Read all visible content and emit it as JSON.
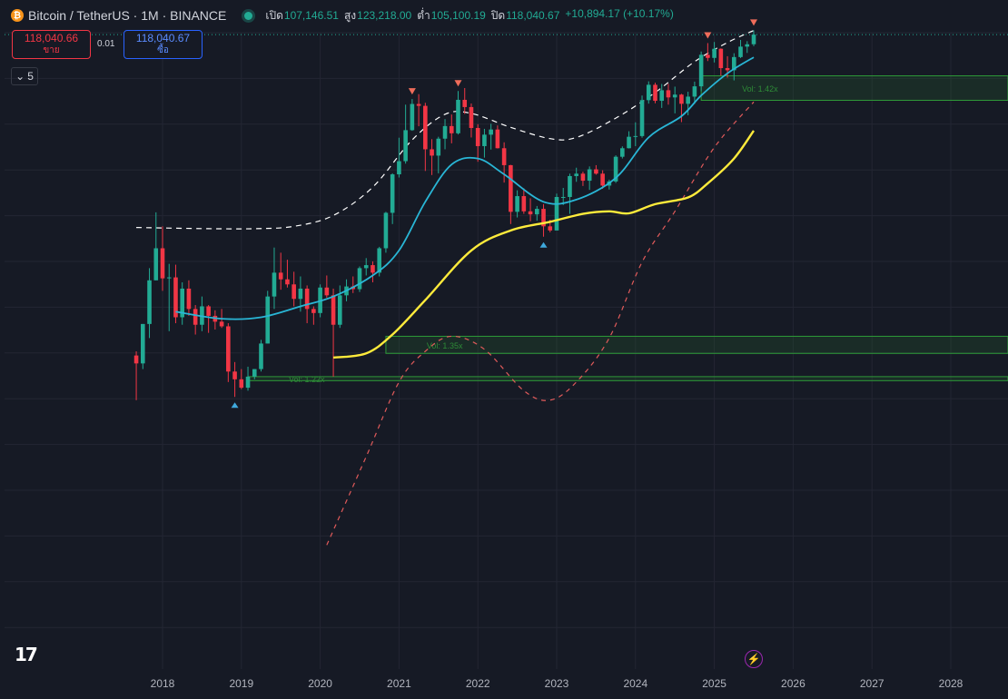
{
  "header": {
    "symbol": "Bitcoin / TetherUS · 1M · BINANCE",
    "coin_icon": "bitcoin-icon",
    "ohlc": {
      "open_label": "เปิด",
      "open": "107,146.51",
      "high_label": "สูง",
      "high": "123,218.00",
      "low_label": "ต่ำ",
      "low": "105,100.19",
      "close_label": "ปิด",
      "close": "118,040.67",
      "change": "+10,894.17 (+10.17%)"
    }
  },
  "trade": {
    "sell_price": "118,040.66",
    "sell_label": "ขาย",
    "spread": "0.01",
    "buy_price": "118,040.67",
    "buy_label": "ซื้อ"
  },
  "indicators_collapsed_count": "5",
  "colors": {
    "up": "#22ab94",
    "down": "#f23645",
    "ma_blue": "#29b6d6",
    "ma_yellow": "#ffeb3b",
    "zone": "#2e7d32",
    "bg": "#161a25",
    "grid": "#232633"
  },
  "chart_data": {
    "type": "candlestick",
    "x_axis": {
      "ticks": [
        "2018",
        "2019",
        "2020",
        "2021",
        "2022",
        "2023",
        "2024",
        "2025",
        "2026",
        "2027",
        "2028"
      ]
    },
    "y_axis": {
      "scale": "log",
      "visible_labels": false
    },
    "candles": [
      [
        "2017-09",
        4700,
        4900,
        3000,
        4340
      ],
      [
        "2017-10",
        4340,
        6450,
        4100,
        6450
      ],
      [
        "2017-11",
        6450,
        11300,
        5600,
        10000
      ],
      [
        "2017-12",
        10000,
        19800,
        10000,
        13800
      ],
      [
        "2018-01",
        13800,
        17200,
        9000,
        10200
      ],
      [
        "2018-02",
        10200,
        11800,
        6000,
        10300
      ],
      [
        "2018-03",
        10300,
        11700,
        6500,
        6900
      ],
      [
        "2018-04",
        6900,
        9800,
        6400,
        9200
      ],
      [
        "2018-05",
        9200,
        10000,
        7000,
        7500
      ],
      [
        "2018-06",
        7500,
        7800,
        5800,
        6400
      ],
      [
        "2018-07",
        6400,
        8500,
        6000,
        7700
      ],
      [
        "2018-08",
        7700,
        7800,
        5900,
        7000
      ],
      [
        "2018-09",
        7000,
        7400,
        6100,
        6600
      ],
      [
        "2018-10",
        6600,
        7500,
        6200,
        6300
      ],
      [
        "2018-11",
        6300,
        6500,
        3600,
        4000
      ],
      [
        "2018-12",
        4000,
        4400,
        3100,
        3700
      ],
      [
        "2019-01",
        3700,
        4100,
        3350,
        3400
      ],
      [
        "2019-02",
        3400,
        4200,
        3300,
        3800
      ],
      [
        "2019-03",
        3800,
        4100,
        3700,
        4100
      ],
      [
        "2019-04",
        4100,
        5500,
        4000,
        5300
      ],
      [
        "2019-05",
        5300,
        9000,
        5300,
        8500
      ],
      [
        "2019-06",
        8500,
        13900,
        7500,
        10800
      ],
      [
        "2019-07",
        10800,
        13200,
        9100,
        10100
      ],
      [
        "2019-08",
        10100,
        12300,
        9300,
        9600
      ],
      [
        "2019-09",
        9600,
        10900,
        7700,
        8300
      ],
      [
        "2019-10",
        8300,
        10400,
        7300,
        9200
      ],
      [
        "2019-11",
        9200,
        9500,
        6500,
        7500
      ],
      [
        "2019-12",
        7500,
        7700,
        6400,
        7200
      ],
      [
        "2020-01",
        7200,
        9600,
        6900,
        9300
      ],
      [
        "2020-02",
        9300,
        10500,
        8400,
        8600
      ],
      [
        "2020-03",
        8600,
        9200,
        3800,
        6400
      ],
      [
        "2020-04",
        6400,
        9500,
        6200,
        8600
      ],
      [
        "2020-05",
        8600,
        10100,
        8100,
        9400
      ],
      [
        "2020-06",
        9400,
        10400,
        8800,
        9150
      ],
      [
        "2020-07",
        9150,
        11500,
        8900,
        11300
      ],
      [
        "2020-08",
        11300,
        12500,
        10500,
        11650
      ],
      [
        "2020-09",
        11650,
        12100,
        9800,
        10800
      ],
      [
        "2020-10",
        10800,
        14000,
        10400,
        13800
      ],
      [
        "2020-11",
        13800,
        19900,
        13200,
        19700
      ],
      [
        "2020-12",
        19700,
        29300,
        17600,
        29000
      ],
      [
        "2021-01",
        29000,
        41900,
        28100,
        33100
      ],
      [
        "2021-02",
        33100,
        58400,
        32300,
        45200
      ],
      [
        "2021-03",
        45200,
        61800,
        44900,
        58800
      ],
      [
        "2021-04",
        58800,
        64900,
        47000,
        57700
      ],
      [
        "2021-05",
        57700,
        59500,
        30000,
        37300
      ],
      [
        "2021-06",
        37300,
        41300,
        28800,
        35000
      ],
      [
        "2021-07",
        35000,
        42300,
        29300,
        41500
      ],
      [
        "2021-08",
        41500,
        50500,
        37300,
        47100
      ],
      [
        "2021-09",
        47100,
        52900,
        39600,
        43800
      ],
      [
        "2021-10",
        43800,
        67000,
        43300,
        61300
      ],
      [
        "2021-11",
        61300,
        69000,
        53200,
        57000
      ],
      [
        "2021-12",
        57000,
        59100,
        42000,
        46200
      ],
      [
        "2022-01",
        46200,
        48000,
        32900,
        38500
      ],
      [
        "2022-02",
        38500,
        45800,
        34300,
        43200
      ],
      [
        "2022-03",
        43200,
        48200,
        37200,
        45500
      ],
      [
        "2022-04",
        45500,
        47400,
        37600,
        37700
      ],
      [
        "2022-05",
        37700,
        40000,
        26700,
        31800
      ],
      [
        "2022-06",
        31800,
        31900,
        17600,
        19900
      ],
      [
        "2022-07",
        19900,
        24700,
        18800,
        23300
      ],
      [
        "2022-08",
        23300,
        25200,
        19500,
        20000
      ],
      [
        "2022-09",
        20000,
        22800,
        18100,
        19400
      ],
      [
        "2022-10",
        19400,
        21100,
        18200,
        20500
      ],
      [
        "2022-11",
        20500,
        21500,
        15500,
        17200
      ],
      [
        "2022-12",
        17200,
        18400,
        16200,
        16500
      ],
      [
        "2023-01",
        16500,
        23900,
        16500,
        23100
      ],
      [
        "2023-02",
        23100,
        25300,
        21300,
        23100
      ],
      [
        "2023-03",
        23100,
        29200,
        19500,
        28500
      ],
      [
        "2023-04",
        28500,
        31000,
        26900,
        29200
      ],
      [
        "2023-05",
        29200,
        29800,
        25800,
        27200
      ],
      [
        "2023-06",
        27200,
        31400,
        24800,
        30500
      ],
      [
        "2023-07",
        30500,
        31800,
        28900,
        29200
      ],
      [
        "2023-08",
        29200,
        30200,
        25100,
        25900
      ],
      [
        "2023-09",
        25900,
        27500,
        24900,
        27000
      ],
      [
        "2023-10",
        27000,
        35100,
        26600,
        34600
      ],
      [
        "2023-11",
        34600,
        38400,
        34000,
        37700
      ],
      [
        "2023-12",
        37700,
        44700,
        37600,
        42300
      ],
      [
        "2024-01",
        42300,
        48900,
        38500,
        42600
      ],
      [
        "2024-02",
        42600,
        64000,
        41900,
        61100
      ],
      [
        "2024-03",
        61100,
        73800,
        59000,
        71300
      ],
      [
        "2024-04",
        71300,
        72800,
        59200,
        60700
      ],
      [
        "2024-05",
        60700,
        71900,
        56500,
        67500
      ],
      [
        "2024-06",
        67500,
        72000,
        58400,
        62800
      ],
      [
        "2024-07",
        62800,
        70000,
        53500,
        64600
      ],
      [
        "2024-08",
        64600,
        65100,
        49000,
        58900
      ],
      [
        "2024-09",
        58900,
        66500,
        52500,
        63300
      ],
      [
        "2024-10",
        63300,
        73600,
        58900,
        70200
      ],
      [
        "2024-11",
        70200,
        99600,
        66800,
        96400
      ],
      [
        "2024-12",
        96400,
        108400,
        90500,
        93400
      ],
      [
        "2025-01",
        93400,
        109600,
        89200,
        102400
      ],
      [
        "2025-02",
        102400,
        102800,
        78200,
        84300
      ],
      [
        "2025-03",
        84300,
        95000,
        76600,
        82500
      ],
      [
        "2025-04",
        82500,
        97900,
        74500,
        94200
      ],
      [
        "2025-05",
        94200,
        111900,
        93300,
        104600
      ],
      [
        "2025-06",
        104600,
        110500,
        98200,
        107100
      ],
      [
        "2025-07",
        107146.51,
        123218,
        105100.19,
        118040.67
      ]
    ],
    "moving_average_blue": [
      [
        "2018-03",
        7300
      ],
      [
        "2018-10",
        6800
      ],
      [
        "2019-04",
        6900
      ],
      [
        "2019-10",
        7700
      ],
      [
        "2020-03",
        8500
      ],
      [
        "2020-09",
        10500
      ],
      [
        "2021-01",
        13500
      ],
      [
        "2021-05",
        22000
      ],
      [
        "2021-09",
        32000
      ],
      [
        "2022-01",
        34000
      ],
      [
        "2022-05",
        29000
      ],
      [
        "2022-11",
        22000
      ],
      [
        "2023-04",
        22500
      ],
      [
        "2023-10",
        28000
      ],
      [
        "2024-03",
        42000
      ],
      [
        "2024-08",
        52000
      ],
      [
        "2024-11",
        64000
      ],
      [
        "2025-03",
        80000
      ],
      [
        "2025-07",
        94000
      ]
    ],
    "moving_average_yellow": [
      [
        "2020-03",
        4600
      ],
      [
        "2020-08",
        4800
      ],
      [
        "2020-12",
        5800
      ],
      [
        "2021-05",
        8200
      ],
      [
        "2021-12",
        13500
      ],
      [
        "2022-06",
        16500
      ],
      [
        "2022-12",
        18000
      ],
      [
        "2023-05",
        19500
      ],
      [
        "2023-09",
        20000
      ],
      [
        "2023-12",
        19600
      ],
      [
        "2024-04",
        21500
      ],
      [
        "2024-09",
        23000
      ],
      [
        "2024-12",
        26500
      ],
      [
        "2025-04",
        34000
      ],
      [
        "2025-07",
        45000
      ]
    ],
    "band_upper_white_dashed": [
      [
        "2017-09",
        17000
      ],
      [
        "2018-08",
        16800
      ],
      [
        "2019-03",
        16800
      ],
      [
        "2019-09",
        17200
      ],
      [
        "2020-03",
        19200
      ],
      [
        "2020-09",
        25500
      ],
      [
        "2021-03",
        41000
      ],
      [
        "2021-08",
        53000
      ],
      [
        "2021-12",
        53500
      ],
      [
        "2022-06",
        46500
      ],
      [
        "2022-12",
        41500
      ],
      [
        "2023-04",
        42000
      ],
      [
        "2023-10",
        51000
      ],
      [
        "2024-04",
        66000
      ],
      [
        "2024-10",
        90000
      ],
      [
        "2025-03",
        109000
      ],
      [
        "2025-07",
        123000
      ]
    ],
    "band_lower_red_dashed": [
      [
        "2020-02",
        700
      ],
      [
        "2020-08",
        1700
      ],
      [
        "2021-01",
        3600
      ],
      [
        "2021-05",
        4900
      ],
      [
        "2021-09",
        5700
      ],
      [
        "2022-02",
        5000
      ],
      [
        "2022-08",
        3300
      ],
      [
        "2022-12",
        3000
      ],
      [
        "2023-04",
        3600
      ],
      [
        "2023-09",
        5600
      ],
      [
        "2024-02",
        12000
      ],
      [
        "2024-07",
        20000
      ],
      [
        "2025-01",
        38000
      ],
      [
        "2025-07",
        60000
      ]
    ],
    "zones": [
      {
        "label": "Vol: 1.42x",
        "from": "2024-11",
        "low": 61000,
        "high": 78000
      },
      {
        "label": "Vol: 1.35x",
        "from": "2020-11",
        "low": 4800,
        "high": 5700
      },
      {
        "label": "Vol: 1.22x",
        "from": "2019-02",
        "low": 3650,
        "high": 3800
      }
    ],
    "markers": [
      {
        "type": "down",
        "at": "2021-03"
      },
      {
        "type": "down",
        "at": "2021-10"
      },
      {
        "type": "down",
        "at": "2024-12"
      },
      {
        "type": "down",
        "at": "2025-07"
      },
      {
        "type": "up",
        "at": "2018-12"
      },
      {
        "type": "up",
        "at": "2022-11"
      }
    ]
  }
}
